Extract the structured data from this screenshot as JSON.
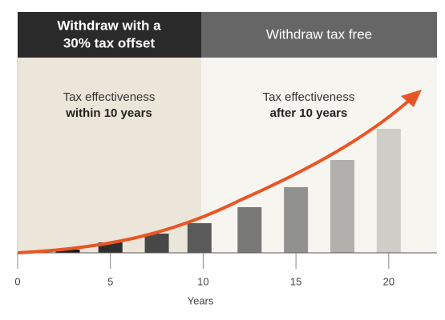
{
  "chart_data": {
    "type": "bar",
    "headers": [
      "Withdraw with a",
      "30% tax offset",
      "Withdraw tax free"
    ],
    "regions": [
      {
        "line1": "Tax effectiveness",
        "line2": "within 10 years"
      },
      {
        "line1": "Tax effectiveness",
        "line2": "after 10 years"
      }
    ],
    "x_label": "Years",
    "x": [
      2.7,
      5,
      7.5,
      9.8,
      12.5,
      15,
      17.5,
      20
    ],
    "values": [
      2,
      6.5,
      12,
      18.5,
      28.5,
      41,
      58,
      77.5
    ],
    "colors": [
      "#1c1c1c",
      "#2f2f2f",
      "#474747",
      "#5a5a5a",
      "#787876",
      "#919190",
      "#b1b0ad",
      "#cfcdc8"
    ],
    "xlim": [
      0,
      22.6
    ],
    "xticks": [
      0,
      5,
      10,
      15,
      20
    ],
    "ylim": [
      0,
      100
    ]
  }
}
